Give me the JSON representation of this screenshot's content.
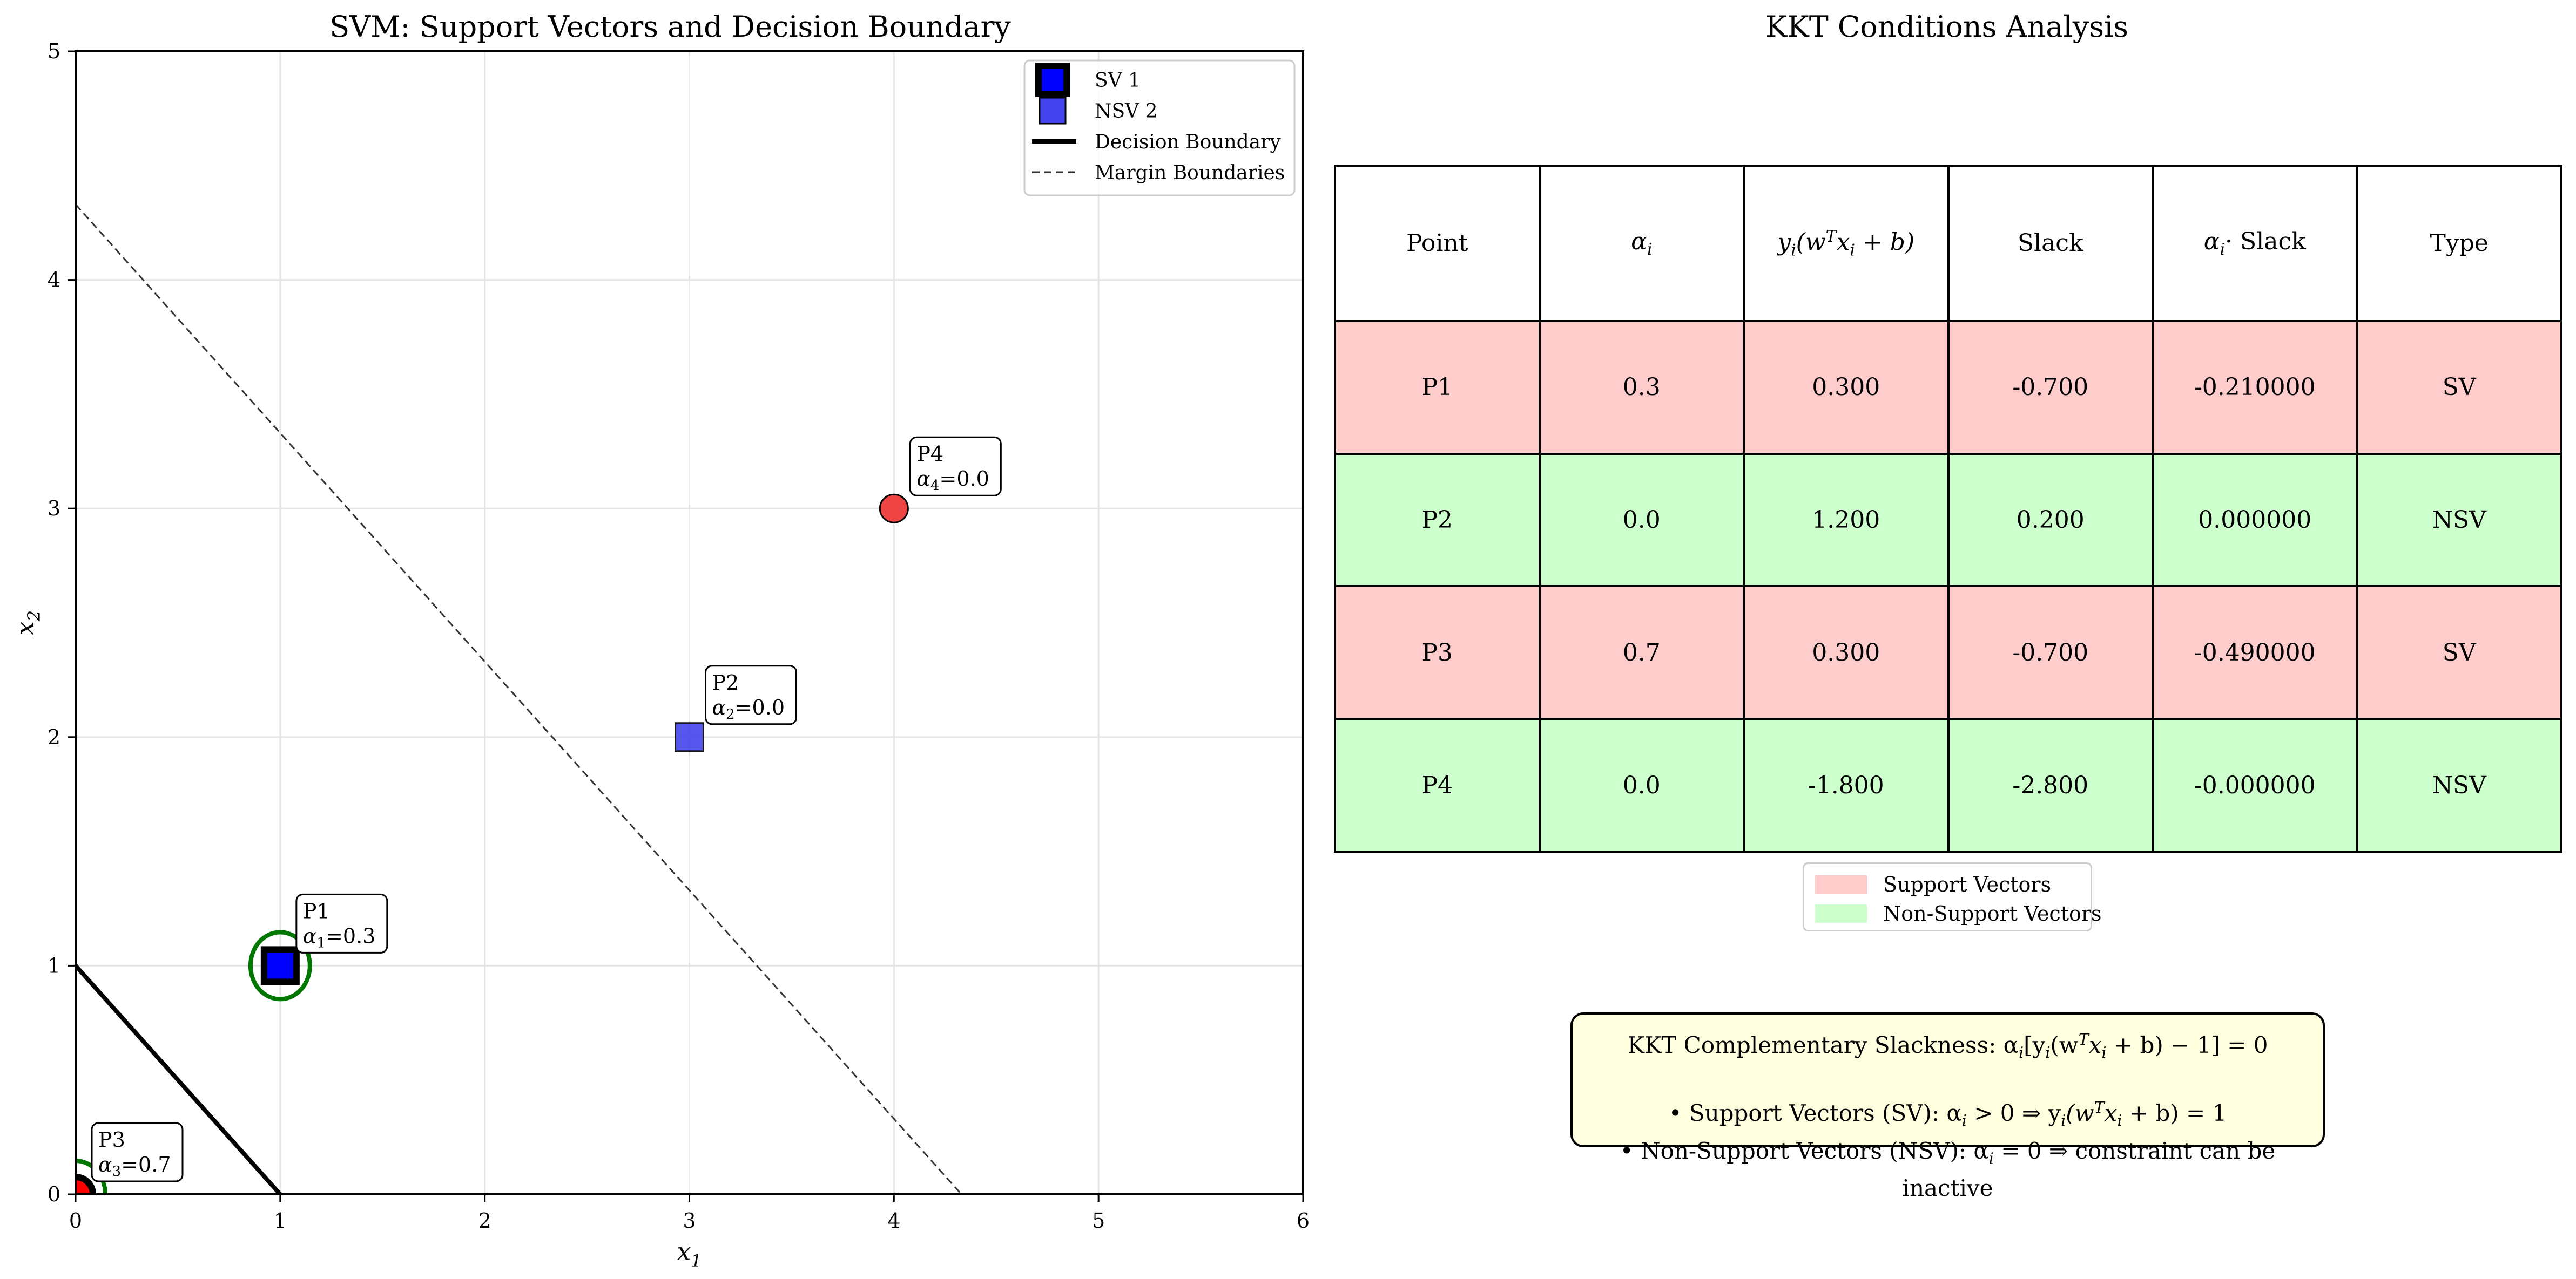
{
  "left_title": "SVM: Support Vectors and Decision Boundary",
  "right_title": "KKT Conditions Analysis",
  "chart_data": {
    "type": "scatter",
    "title": "SVM: Support Vectors and Decision Boundary",
    "xlabel": "x",
    "xlabel_sub": "1",
    "ylabel": "x",
    "ylabel_sub": "2",
    "xlim": [
      0,
      6
    ],
    "ylim": [
      0,
      5
    ],
    "xticks": [
      0,
      1,
      2,
      3,
      4,
      5,
      6
    ],
    "yticks": [
      0,
      1,
      2,
      3,
      4,
      5
    ],
    "grid": true,
    "legend_position": "top-right",
    "points": [
      {
        "id": "P1",
        "x": 1,
        "y": 1,
        "alpha": "0.3",
        "alpha_sub": "1",
        "marker": "square",
        "class": "blue",
        "support_vector": true
      },
      {
        "id": "P2",
        "x": 3,
        "y": 2,
        "alpha": "0.0",
        "alpha_sub": "2",
        "marker": "square",
        "class": "blue",
        "support_vector": false
      },
      {
        "id": "P3",
        "x": 0,
        "y": 0,
        "alpha": "0.7",
        "alpha_sub": "3",
        "marker": "circle",
        "class": "red",
        "support_vector": true
      },
      {
        "id": "P4",
        "x": 4,
        "y": 3,
        "alpha": "0.0",
        "alpha_sub": "4",
        "marker": "circle",
        "class": "red",
        "support_vector": false
      }
    ],
    "lines": [
      {
        "name": "Decision Boundary",
        "style": "solid",
        "x": [
          0,
          1
        ],
        "y": [
          1,
          0
        ]
      },
      {
        "name": "Margin Boundaries",
        "style": "dashed",
        "x": [
          0,
          4.33
        ],
        "y": [
          4.33,
          0
        ]
      }
    ],
    "legend": [
      "SV 1",
      "NSV 2",
      "Decision Boundary",
      "Margin Boundaries"
    ],
    "colors": {
      "blue": "#0000ff",
      "blue_nsv": "#4444ee",
      "red_sv": "#ff0000",
      "red_nsv": "#ee4444",
      "sv_ring": "#007700"
    }
  },
  "table": {
    "headers": {
      "point": "Point",
      "alpha": "α",
      "alpha_sub": "i",
      "margin_prefix": "y",
      "margin_body": "(w",
      "margin_sup": "T",
      "margin_x": "x",
      "margin_end": " + b)",
      "slack": "Slack",
      "alpha_slack": "· Slack",
      "type": "Type"
    },
    "rows": [
      {
        "point": "P1",
        "alpha": "0.3",
        "margin": "0.300",
        "slack": "-0.700",
        "alpha_slack": "-0.210000",
        "type": "SV"
      },
      {
        "point": "P2",
        "alpha": "0.0",
        "margin": "1.200",
        "slack": "0.200",
        "alpha_slack": "0.000000",
        "type": "NSV"
      },
      {
        "point": "P3",
        "alpha": "0.7",
        "margin": "0.300",
        "slack": "-0.700",
        "alpha_slack": "-0.490000",
        "type": "SV"
      },
      {
        "point": "P4",
        "alpha": "0.0",
        "margin": "-1.800",
        "slack": "-2.800",
        "alpha_slack": "-0.000000",
        "type": "NSV"
      }
    ],
    "colors": {
      "sv": "#ffcccc",
      "nsv": "#ccffcc"
    }
  },
  "table_legend": {
    "sv": "Support Vectors",
    "nsv": "Non-Support Vectors"
  },
  "kkt_box": {
    "line1": "KKT Complementary Slackness: α",
    "line1_rest": "[y",
    "line1_tail": "(w",
    "line1_end": " + b) − 1] = 0",
    "line2": "• Support Vectors (SV): α",
    "line2_rest": " > 0 ⇒ y",
    "line2_end": " + b) = 1",
    "line3": "• Non-Support Vectors (NSV): α",
    "line3_rest": " = 0 ⇒ constraint can be inactive"
  }
}
